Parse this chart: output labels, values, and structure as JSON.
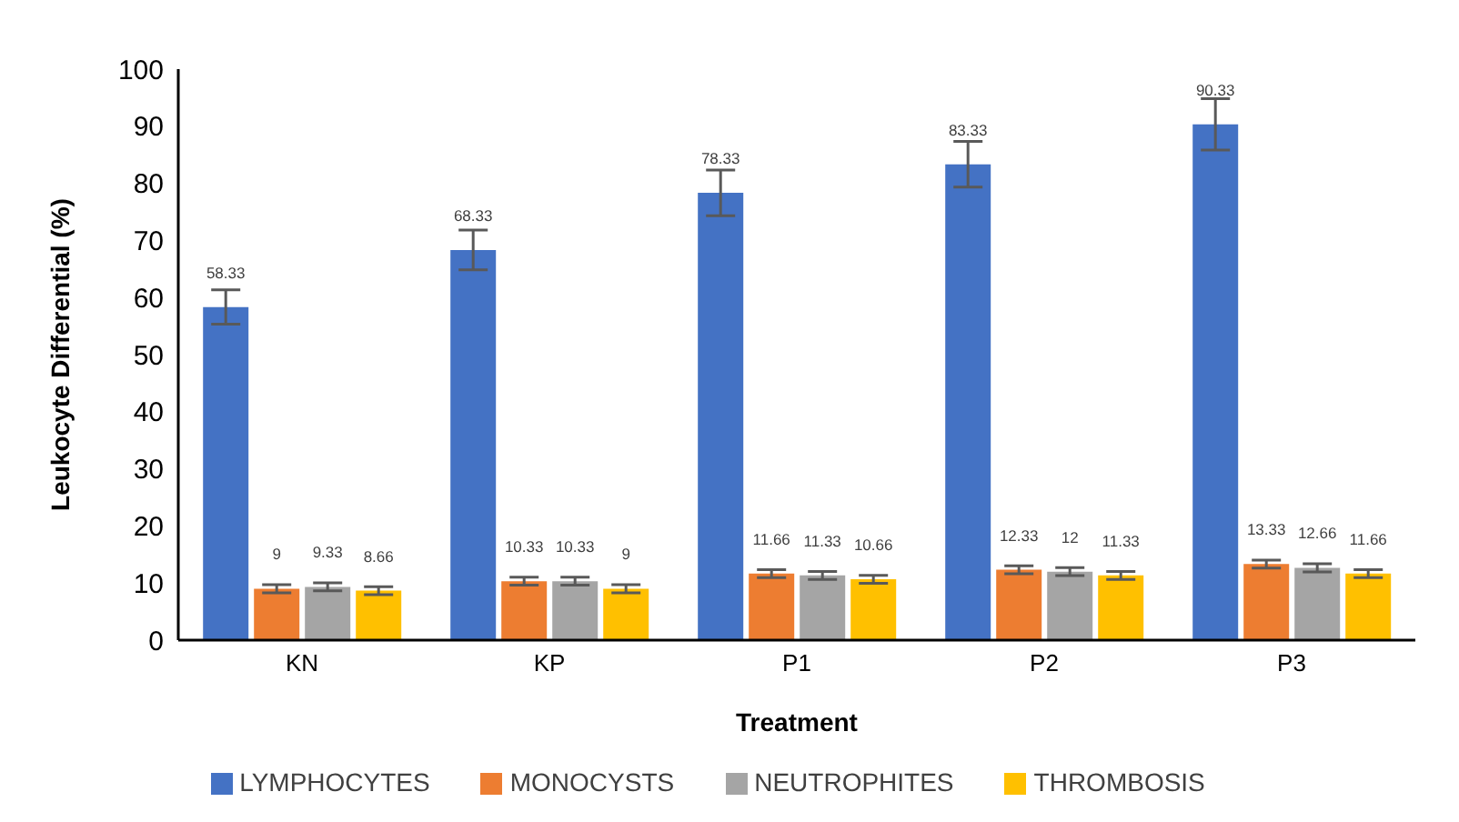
{
  "chart_data": {
    "type": "bar",
    "xlabel": "Treatment",
    "ylabel": "Leukocyte Differential (%)",
    "categories": [
      "KN",
      "KP",
      "P1",
      "P2",
      "P3"
    ],
    "series": [
      {
        "name": "LYMPHOCYTES",
        "color": "#4472c4",
        "values": [
          58.33,
          68.33,
          78.33,
          83.33,
          90.33
        ],
        "errors": [
          3,
          3.5,
          4,
          4,
          4.5
        ]
      },
      {
        "name": "MONOCYSTS",
        "color": "#ed7d31",
        "values": [
          9,
          10.33,
          11.66,
          12.33,
          13.33
        ],
        "errors": [
          0.7,
          0.7,
          0.7,
          0.7,
          0.7
        ]
      },
      {
        "name": "NEUTROPHITES",
        "color": "#a5a5a5",
        "values": [
          9.33,
          10.33,
          11.33,
          12,
          12.66
        ],
        "errors": [
          0.7,
          0.7,
          0.7,
          0.7,
          0.7
        ]
      },
      {
        "name": "THROMBOSIS",
        "color": "#ffc000",
        "values": [
          8.66,
          9,
          10.66,
          11.33,
          11.66
        ],
        "errors": [
          0.7,
          0.7,
          0.7,
          0.7,
          0.7
        ]
      }
    ],
    "ylim": [
      0,
      100
    ],
    "yticks": [
      0,
      10,
      20,
      30,
      40,
      50,
      60,
      70,
      80,
      90,
      100
    ],
    "grid": false,
    "legend": "bottom",
    "data_labels": true
  }
}
